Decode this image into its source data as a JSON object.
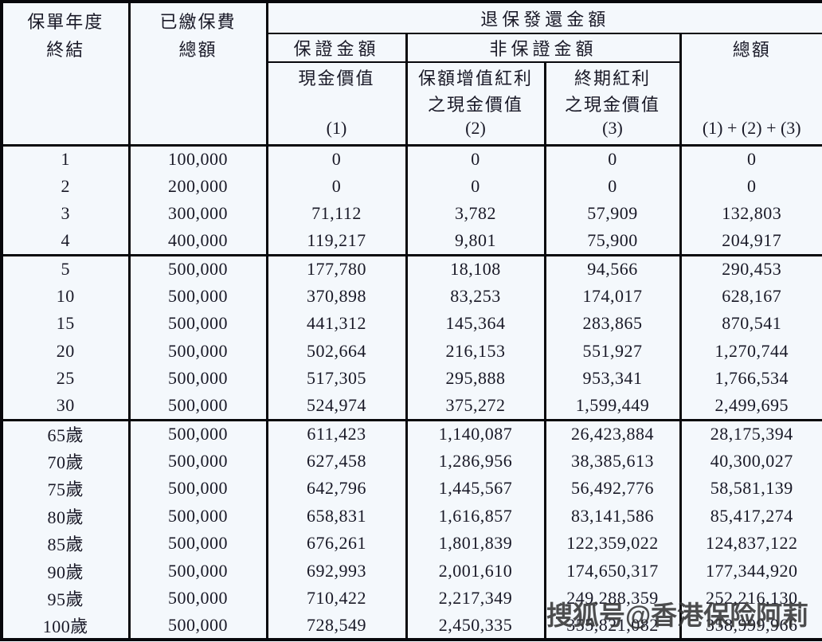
{
  "table": {
    "header": {
      "policy_year_line1": "保單年度",
      "policy_year_line2": "終結",
      "premium_line1": "已繳保費",
      "premium_line2": "總額",
      "surrender_group": "退保發還金額",
      "guaranteed_group": "保證金額",
      "non_guaranteed_group": "非保證金額",
      "total_group": "總額",
      "cash_value": "現金價值",
      "cash_value_num": "(1)",
      "special_bonus_line1": "保額增值紅利",
      "special_bonus_line2": "之現金價值",
      "special_bonus_num": "(2)",
      "terminal_bonus_line1": "終期紅利",
      "terminal_bonus_line2": "之現金價值",
      "terminal_bonus_num": "(3)",
      "total_formula": "(1) + (2) + (3)"
    },
    "blocks": [
      {
        "rows": [
          [
            "1",
            "100,000",
            "0",
            "0",
            "0",
            "0"
          ],
          [
            "2",
            "200,000",
            "0",
            "0",
            "0",
            "0"
          ],
          [
            "3",
            "300,000",
            "71,112",
            "3,782",
            "57,909",
            "132,803"
          ],
          [
            "4",
            "400,000",
            "119,217",
            "9,801",
            "75,900",
            "204,917"
          ]
        ]
      },
      {
        "rows": [
          [
            "5",
            "500,000",
            "177,780",
            "18,108",
            "94,566",
            "290,453"
          ],
          [
            "10",
            "500,000",
            "370,898",
            "83,253",
            "174,017",
            "628,167"
          ],
          [
            "15",
            "500,000",
            "441,312",
            "145,364",
            "283,865",
            "870,541"
          ],
          [
            "20",
            "500,000",
            "502,664",
            "216,153",
            "551,927",
            "1,270,744"
          ],
          [
            "25",
            "500,000",
            "517,305",
            "295,888",
            "953,341",
            "1,766,534"
          ],
          [
            "30",
            "500,000",
            "524,974",
            "375,272",
            "1,599,449",
            "2,499,695"
          ]
        ]
      },
      {
        "rows": [
          [
            "65歲",
            "500,000",
            "611,423",
            "1,140,087",
            "26,423,884",
            "28,175,394"
          ],
          [
            "70歲",
            "500,000",
            "627,458",
            "1,286,956",
            "38,385,613",
            "40,300,027"
          ],
          [
            "75歲",
            "500,000",
            "642,796",
            "1,445,567",
            "56,492,776",
            "58,581,139"
          ],
          [
            "80歲",
            "500,000",
            "658,831",
            "1,616,857",
            "83,141,586",
            "85,417,274"
          ],
          [
            "85歲",
            "500,000",
            "676,261",
            "1,801,839",
            "122,359,022",
            "124,837,122"
          ],
          [
            "90歲",
            "500,000",
            "692,993",
            "2,001,610",
            "174,650,317",
            "177,344,920"
          ],
          [
            "95歲",
            "500,000",
            "710,422",
            "2,217,349",
            "249,288,359",
            "252,216,130"
          ],
          [
            "100歲",
            "500,000",
            "728,549",
            "2,450,335",
            "355,821,082",
            "358,999,966"
          ]
        ]
      }
    ]
  },
  "watermark": "搜狐号@香港保险阿莉"
}
